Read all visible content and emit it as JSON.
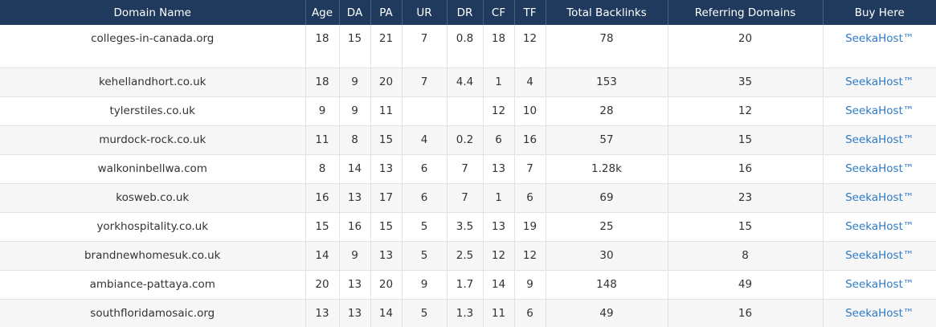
{
  "columns": [
    "Domain Name",
    "Age",
    "DA",
    "PA",
    "UR",
    "DR",
    "CF",
    "TF",
    "Total Backlinks",
    "Referring Domains",
    "Buy Here"
  ],
  "rows": [
    {
      "domain": "colleges-in-canada.org",
      "age": "18",
      "da": "15",
      "pa": "21",
      "ur": "7",
      "dr": "0.8",
      "cf": "18",
      "tf": "12",
      "backlinks": "78",
      "refdomains": "20",
      "buy": "SeekaHost™"
    },
    {
      "domain": "kehellandhort.co.uk",
      "age": "18",
      "da": "9",
      "pa": "20",
      "ur": "7",
      "dr": "4.4",
      "cf": "1",
      "tf": "4",
      "backlinks": "153",
      "refdomains": "35",
      "buy": "SeekaHost™"
    },
    {
      "domain": "tylerstiles.co.uk",
      "age": "9",
      "da": "9",
      "pa": "11",
      "ur": "",
      "dr": "",
      "cf": "12",
      "tf": "10",
      "backlinks": "28",
      "refdomains": "12",
      "buy": "SeekaHost™"
    },
    {
      "domain": "murdock-rock.co.uk",
      "age": "11",
      "da": "8",
      "pa": "15",
      "ur": "4",
      "dr": "0.2",
      "cf": "6",
      "tf": "16",
      "backlinks": "57",
      "refdomains": "15",
      "buy": "SeekaHost™"
    },
    {
      "domain": "walkoninbellwa.com",
      "age": "8",
      "da": "14",
      "pa": "13",
      "ur": "6",
      "dr": "7",
      "cf": "13",
      "tf": "7",
      "backlinks": "1.28k",
      "refdomains": "16",
      "buy": "SeekaHost™"
    },
    {
      "domain": "kosweb.co.uk",
      "age": "16",
      "da": "13",
      "pa": "17",
      "ur": "6",
      "dr": "7",
      "cf": "1",
      "tf": "6",
      "backlinks": "69",
      "refdomains": "23",
      "buy": "SeekaHost™"
    },
    {
      "domain": "yorkhospitality.co.uk",
      "age": "15",
      "da": "16",
      "pa": "15",
      "ur": "5",
      "dr": "3.5",
      "cf": "13",
      "tf": "19",
      "backlinks": "25",
      "refdomains": "15",
      "buy": "SeekaHost™"
    },
    {
      "domain": "brandnewhomesuk.co.uk",
      "age": "14",
      "da": "9",
      "pa": "13",
      "ur": "5",
      "dr": "2.5",
      "cf": "12",
      "tf": "12",
      "backlinks": "30",
      "refdomains": "8",
      "buy": "SeekaHost™"
    },
    {
      "domain": "ambiance-pattaya.com",
      "age": "20",
      "da": "13",
      "pa": "20",
      "ur": "9",
      "dr": "1.7",
      "cf": "14",
      "tf": "9",
      "backlinks": "148",
      "refdomains": "49",
      "buy": "SeekaHost™"
    },
    {
      "domain": "southfloridamosaic.org",
      "age": "13",
      "da": "13",
      "pa": "14",
      "ur": "5",
      "dr": "1.3",
      "cf": "11",
      "tf": "6",
      "backlinks": "49",
      "refdomains": "16",
      "buy": "SeekaHost™"
    }
  ],
  "colors": {
    "header_bg": "#1f3a5c",
    "header_text": "#ffffff",
    "link": "#2e7bc4",
    "alt_row": "#f7f7f7"
  }
}
